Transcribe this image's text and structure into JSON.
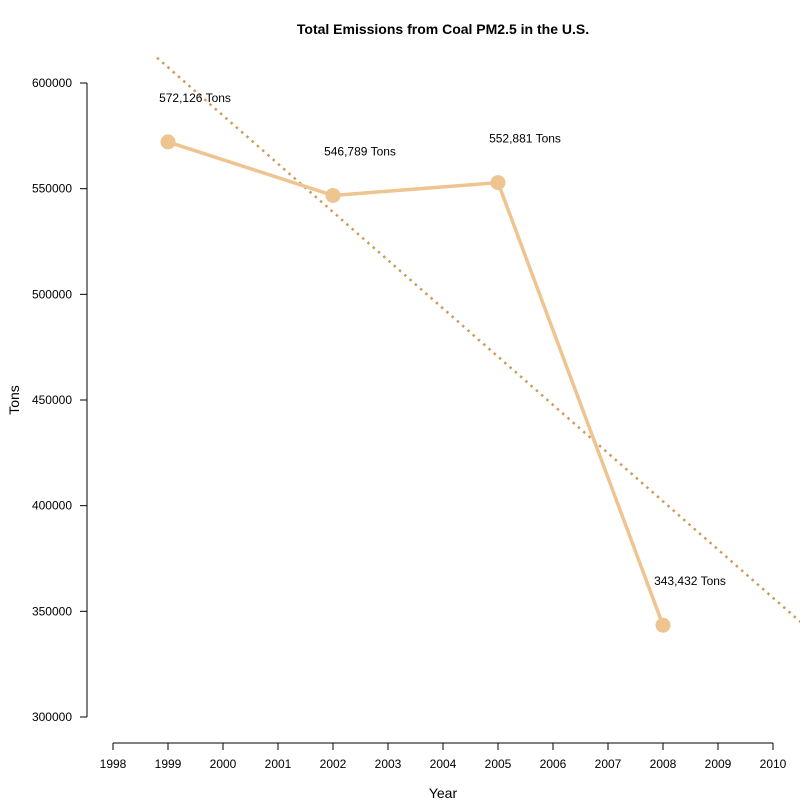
{
  "chart_data": {
    "type": "line",
    "title": "Total Emissions from Coal PM2.5 in the U.S.",
    "xlabel": "Year",
    "ylabel": "Tons",
    "xlim": [
      1998,
      2010
    ],
    "ylim": [
      300000,
      600000
    ],
    "x_ticks": [
      "1998",
      "1999",
      "2000",
      "2001",
      "2002",
      "2003",
      "2004",
      "2005",
      "2006",
      "2007",
      "2008",
      "2009",
      "2010"
    ],
    "y_ticks": [
      "300000",
      "350000",
      "400000",
      "450000",
      "500000",
      "550000",
      "600000"
    ],
    "grid": false,
    "series": [
      {
        "x": [
          1999,
          2002,
          2005,
          2008
        ],
        "values": [
          572126,
          546789,
          552881,
          343432
        ],
        "labels": [
          "572,126 Tons",
          "546,789 Tons",
          "552,881 Tons",
          "343,432 Tons"
        ],
        "color": "#eec591"
      }
    ],
    "trend_line": {
      "style": "dotted",
      "color": "#cd9b5a",
      "points": [
        [
          1998.8,
          612000
        ],
        [
          2010.5,
          345000
        ]
      ]
    }
  }
}
